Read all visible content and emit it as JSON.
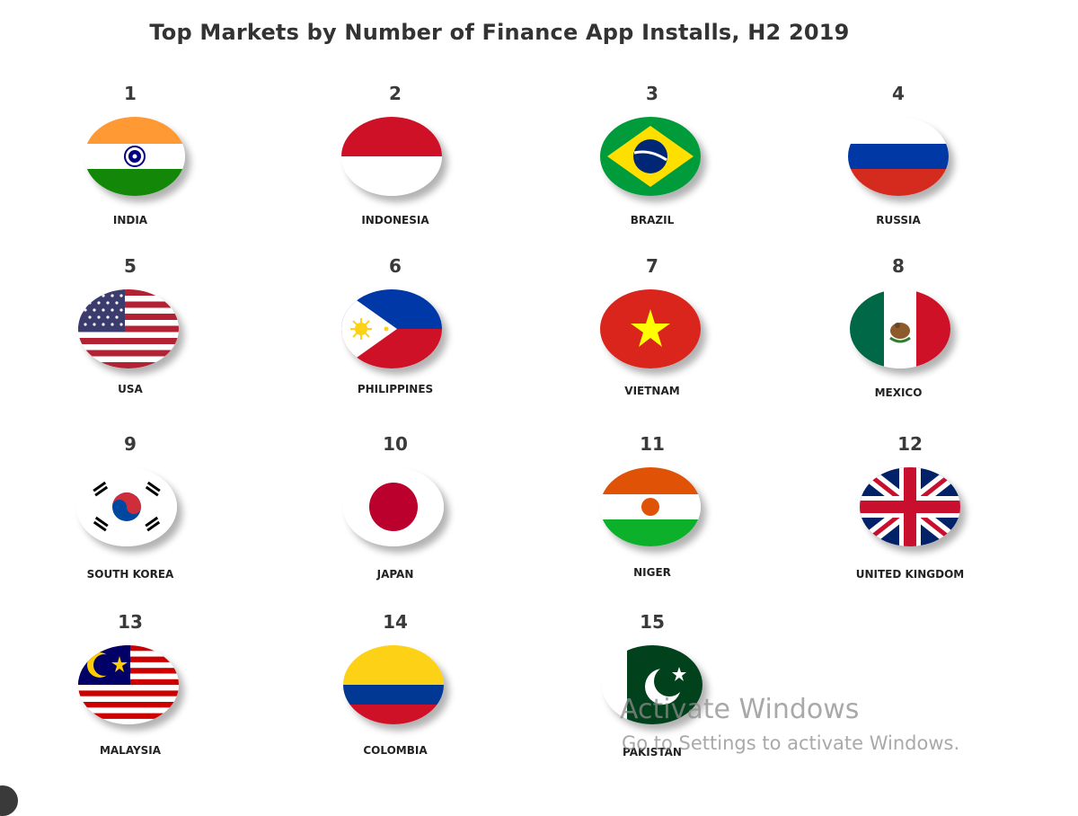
{
  "title": "Top Markets by Number of Finance App Installs, H2 2019",
  "markets": [
    {
      "rank": "1",
      "country": "INDIA",
      "flag_icon": "india-flag-icon"
    },
    {
      "rank": "2",
      "country": "INDONESIA",
      "flag_icon": "indonesia-flag-icon"
    },
    {
      "rank": "3",
      "country": "BRAZIL",
      "flag_icon": "brazil-flag-icon"
    },
    {
      "rank": "4",
      "country": "RUSSIA",
      "flag_icon": "russia-flag-icon"
    },
    {
      "rank": "5",
      "country": "USA",
      "flag_icon": "usa-flag-icon"
    },
    {
      "rank": "6",
      "country": "PHILIPPINES",
      "flag_icon": "philippines-flag-icon"
    },
    {
      "rank": "7",
      "country": "VIETNAM",
      "flag_icon": "vietnam-flag-icon"
    },
    {
      "rank": "8",
      "country": "MEXICO",
      "flag_icon": "mexico-flag-icon"
    },
    {
      "rank": "9",
      "country": "SOUTH KOREA",
      "flag_icon": "south-korea-flag-icon"
    },
    {
      "rank": "10",
      "country": "JAPAN",
      "flag_icon": "japan-flag-icon"
    },
    {
      "rank": "11",
      "country": "NIGER",
      "flag_icon": "niger-flag-icon"
    },
    {
      "rank": "12",
      "country": "UNITED KINGDOM",
      "flag_icon": "united-kingdom-flag-icon"
    },
    {
      "rank": "13",
      "country": "MALAYSIA",
      "flag_icon": "malaysia-flag-icon"
    },
    {
      "rank": "14",
      "country": "COLOMBIA",
      "flag_icon": "colombia-flag-icon"
    },
    {
      "rank": "15",
      "country": "PAKISTAN",
      "flag_icon": "pakistan-flag-icon"
    }
  ],
  "watermark": {
    "line1": "Activate Windows",
    "line2": "Go to Settings to activate Windows."
  }
}
